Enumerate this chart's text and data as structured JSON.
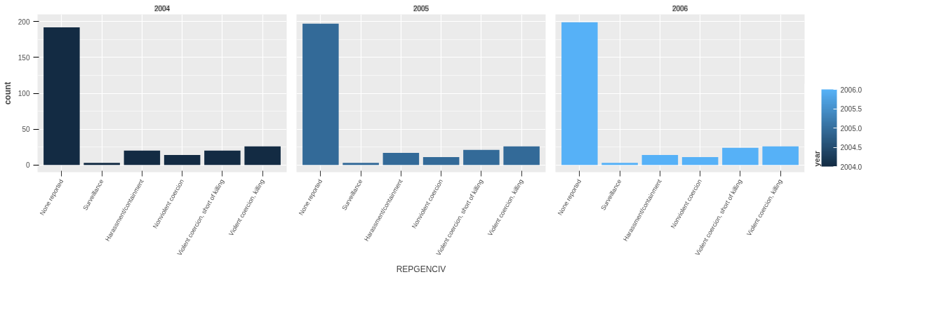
{
  "chart_data": [
    {
      "type": "bar",
      "title": "2004",
      "ylabel": "count",
      "categories": [
        "None reported",
        "Surveillance",
        "Harassment/containment",
        "Nonviolent coercion",
        "Violent coercion, short of killing",
        "Violent coercion, killing"
      ],
      "values": [
        192,
        3,
        20,
        14,
        20,
        26
      ],
      "color": "#132b43",
      "ylim": [
        -10,
        210
      ],
      "yticks": [
        0,
        50,
        100,
        150,
        200
      ],
      "grid": true
    },
    {
      "type": "bar",
      "title": "2005",
      "xlabel": "REPGENCIV",
      "categories": [
        "None reported",
        "Surveillance",
        "Harassment/containment",
        "Nonviolent coercion",
        "Violent coercion, short of killing",
        "Violent coercion, killing"
      ],
      "values": [
        197,
        3,
        17,
        11,
        21,
        26
      ],
      "color": "#336a98",
      "ylim": [
        -10,
        210
      ],
      "yticks": [
        0,
        50,
        100,
        150,
        200
      ],
      "grid": true,
      "tick_labels": "x"
    },
    {
      "type": "bar",
      "title": "2006",
      "categories": [
        "None reported",
        "Surveillance",
        "Harassment/containment",
        "Nonviolent coercion",
        "Violent coercion, short of killing",
        "Violent coercion, killing"
      ],
      "values": [
        199,
        3,
        14,
        11,
        24,
        26
      ],
      "color": "#56b1f7",
      "ylim": [
        -10,
        210
      ],
      "yticks": [
        0,
        50,
        100,
        150,
        200
      ],
      "grid": true,
      "tick_labels": "x",
      "clabel": "year",
      "clim": [
        2004,
        2006
      ],
      "cticks": [
        {
          "value": 2004,
          "label": "2004.0"
        },
        {
          "value": 2004.5,
          "label": "2004.5"
        },
        {
          "value": 2005,
          "label": "2005.0"
        },
        {
          "value": 2005.5,
          "label": "2005.5"
        },
        {
          "value": 2006,
          "label": "2006.0"
        }
      ]
    }
  ]
}
